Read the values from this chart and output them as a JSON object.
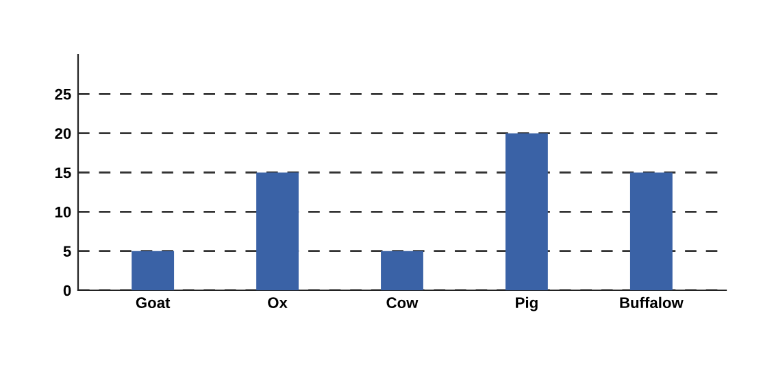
{
  "chart_data": {
    "type": "bar",
    "categories": [
      "Goat",
      "Ox",
      "Cow",
      "Pig",
      "Buffalow"
    ],
    "values": [
      5,
      15,
      5,
      20,
      15
    ],
    "color": "#3a62a6",
    "ylim": [
      0,
      30
    ],
    "yticks": [
      0,
      5,
      10,
      15,
      20,
      25
    ],
    "grid": "y"
  }
}
